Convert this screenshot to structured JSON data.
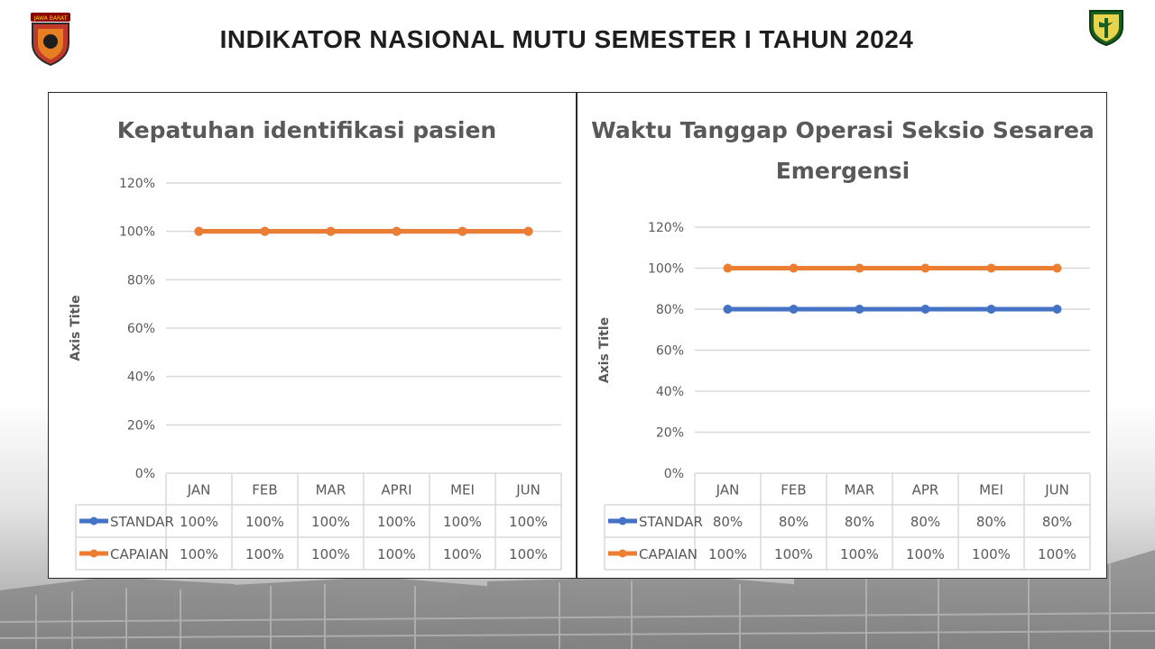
{
  "page": {
    "title": "INDIKATOR NASIONAL MUTU SEMESTER I TAHUN 2024"
  },
  "logos": {
    "left_text": "JAWA BARAT"
  },
  "colors": {
    "standar": "#4472C4",
    "capaian": "#ED7D31",
    "grid": "#D9D9D9",
    "text": "#595959"
  },
  "chart_data": [
    {
      "type": "line",
      "title": "Kepatuhan identifikasi pasien",
      "xlabel": "",
      "ylabel": "Axis Title",
      "categories": [
        "JAN",
        "FEB",
        "MAR",
        "APRI",
        "MEI",
        "JUN"
      ],
      "y_ticks": [
        "0%",
        "20%",
        "40%",
        "60%",
        "80%",
        "100%",
        "120%"
      ],
      "ylim": [
        0,
        120
      ],
      "grid": true,
      "legend": "data-table",
      "series": [
        {
          "name": "STANDAR",
          "values": [
            100,
            100,
            100,
            100,
            100,
            100
          ],
          "labels": [
            "100%",
            "100%",
            "100%",
            "100%",
            "100%",
            "100%"
          ]
        },
        {
          "name": "CAPAIAN",
          "values": [
            100,
            100,
            100,
            100,
            100,
            100
          ],
          "labels": [
            "100%",
            "100%",
            "100%",
            "100%",
            "100%",
            "100%"
          ]
        }
      ]
    },
    {
      "type": "line",
      "title": "Waktu Tanggap Operasi Seksio Sesarea Emergensi",
      "title_lines": [
        "Waktu Tanggap Operasi Seksio Sesarea",
        "Emergensi"
      ],
      "xlabel": "",
      "ylabel": "Axis Title",
      "categories": [
        "JAN",
        "FEB",
        "MAR",
        "APR",
        "MEI",
        "JUN"
      ],
      "y_ticks": [
        "0%",
        "20%",
        "40%",
        "60%",
        "80%",
        "100%",
        "120%"
      ],
      "ylim": [
        0,
        120
      ],
      "grid": true,
      "legend": "data-table",
      "series": [
        {
          "name": "STANDAR",
          "values": [
            80,
            80,
            80,
            80,
            80,
            80
          ],
          "labels": [
            "80%",
            "80%",
            "80%",
            "80%",
            "80%",
            "80%"
          ]
        },
        {
          "name": "CAPAIAN",
          "values": [
            100,
            100,
            100,
            100,
            100,
            100
          ],
          "labels": [
            "100%",
            "100%",
            "100%",
            "100%",
            "100%",
            "100%"
          ]
        }
      ]
    }
  ]
}
